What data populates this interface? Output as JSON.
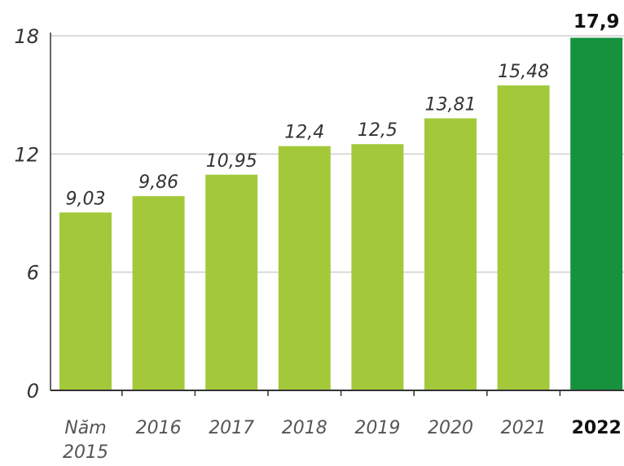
{
  "chart_data": {
    "type": "bar",
    "categories": [
      "Năm 2015",
      "2016",
      "2017",
      "2018",
      "2019",
      "2020",
      "2021",
      "2022"
    ],
    "category_lines": [
      [
        "Năm",
        "2015"
      ],
      [
        "2016"
      ],
      [
        "2017"
      ],
      [
        "2018"
      ],
      [
        "2019"
      ],
      [
        "2020"
      ],
      [
        "2021"
      ],
      [
        "2022"
      ]
    ],
    "values": [
      9.03,
      9.86,
      10.95,
      12.4,
      12.5,
      13.81,
      15.48,
      17.9
    ],
    "value_labels": [
      "9,03",
      "9,86",
      "10,95",
      "12,4",
      "12,5",
      "13,81",
      "15,48",
      "17,9"
    ],
    "highlight_index": 7,
    "ylim": [
      0,
      18
    ],
    "yticks": [
      0,
      6,
      12,
      18
    ],
    "ytick_labels": [
      "0",
      "6",
      "12",
      "18"
    ],
    "grid": true,
    "colors": {
      "bar": "#a3c93a",
      "highlight_bar": "#16923f",
      "grid": "#cfcfcf",
      "axis": "#333333",
      "text": "#333333",
      "highlight_text": "#111111"
    }
  }
}
